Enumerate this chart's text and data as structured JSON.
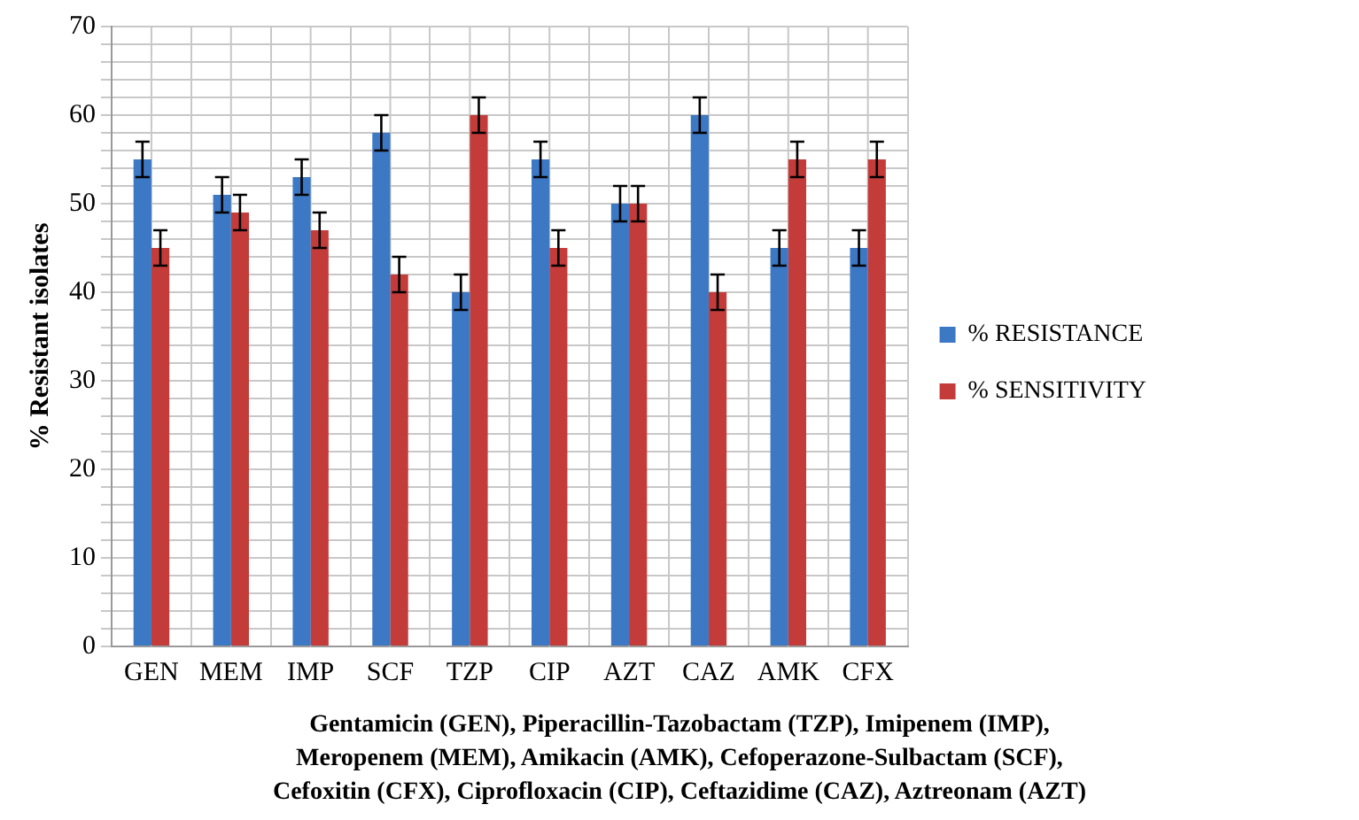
{
  "chart_data": {
    "type": "bar",
    "ylabel": "% Resistant isolates",
    "categories": [
      "GEN",
      "MEM",
      "IMP",
      "SCF",
      "TZP",
      "CIP",
      "AZT",
      "CAZ",
      "AMK",
      "CFX"
    ],
    "series": [
      {
        "name": "% RESISTANCE",
        "color": "#3c78c4",
        "values": [
          55,
          51,
          53,
          58,
          40,
          55,
          50,
          60,
          45,
          45
        ],
        "errors": [
          2,
          2,
          2,
          2,
          2,
          2,
          2,
          2,
          2,
          2
        ]
      },
      {
        "name": "% SENSITIVITY",
        "color": "#c43c3a",
        "values": [
          45,
          49,
          47,
          42,
          60,
          45,
          50,
          40,
          55,
          55
        ],
        "errors": [
          2,
          2,
          2,
          2,
          2,
          2,
          2,
          2,
          2,
          2
        ]
      }
    ],
    "ylim": [
      0,
      70
    ],
    "yticks": [
      0,
      {
        "value": 2,
        "label": null
      },
      {
        "value": 4,
        "label": null
      },
      {
        "value": 6,
        "label": null
      },
      {
        "value": 8,
        "label": null
      },
      10,
      {
        "value": 12,
        "label": null
      },
      {
        "value": 14,
        "label": null
      },
      {
        "value": 16,
        "label": null
      },
      {
        "value": 18,
        "label": null
      },
      20,
      {
        "value": 22,
        "label": null
      },
      {
        "value": 24,
        "label": null
      },
      {
        "value": 26,
        "label": null
      },
      {
        "value": 28,
        "label": null
      },
      30,
      {
        "value": 32,
        "label": null
      },
      {
        "value": 34,
        "label": null
      },
      {
        "value": 36,
        "label": null
      },
      {
        "value": 38,
        "label": null
      },
      40,
      {
        "value": 42,
        "label": null
      },
      {
        "value": 44,
        "label": null
      },
      {
        "value": 46,
        "label": null
      },
      {
        "value": 48,
        "label": null
      },
      50,
      {
        "value": 52,
        "label": null
      },
      {
        "value": 54,
        "label": null
      },
      {
        "value": 56,
        "label": null
      },
      {
        "value": 58,
        "label": null
      },
      60,
      {
        "value": 62,
        "label": null
      },
      {
        "value": 64,
        "label": null
      },
      {
        "value": 66,
        "label": null
      },
      {
        "value": 68,
        "label": null
      },
      70
    ],
    "grid": true,
    "legend": "right",
    "annotations": [
      "Gentamicin (GEN), Piperacillin-Tazobactam (TZP), Imipenem (IMP),\nMeropenem (MEM), Amikacin (AMK), Cefoperazone-Sulbactam (SCF),\nCefoxitin (CFX), Ciprofloxacin (CIP), Ceftazidime (CAZ), Aztreonam (AZT)"
    ]
  }
}
